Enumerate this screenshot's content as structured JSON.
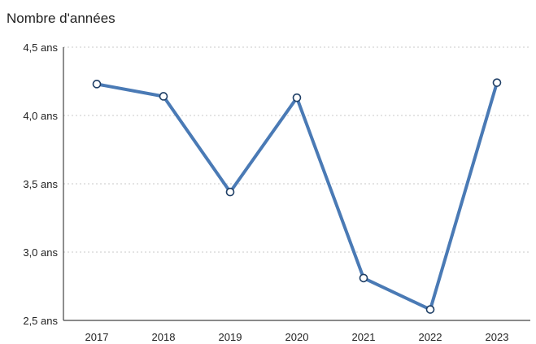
{
  "chart_data": {
    "type": "line",
    "title": "Nombre d'années",
    "categories": [
      "2017",
      "2018",
      "2019",
      "2020",
      "2021",
      "2022",
      "2023"
    ],
    "series": [
      {
        "values": [
          4.23,
          4.14,
          3.44,
          4.13,
          2.81,
          2.58,
          4.24
        ],
        "color": "#4a7ab5"
      }
    ],
    "ylim": [
      2.5,
      4.5
    ],
    "yticks": [
      2.5,
      3.0,
      3.5,
      4.0,
      4.5
    ],
    "ytick_labels": [
      "2,5 ans",
      "3,0 ans",
      "3,5 ans",
      "4,0 ans",
      "4,5 ans"
    ],
    "grid": true,
    "markers": "hollow-circle"
  }
}
